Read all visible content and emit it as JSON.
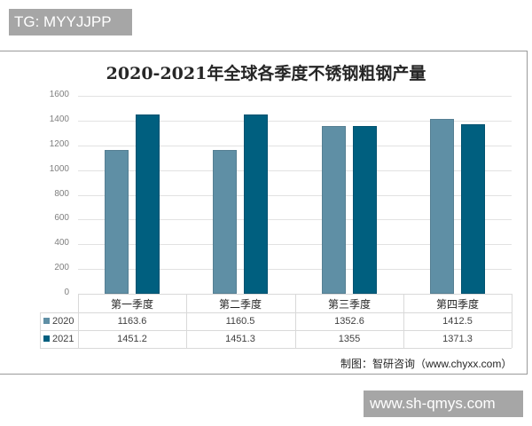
{
  "watermarks": {
    "top": "TG: MYYJJPP",
    "bottom": "www.sh-qmys.com"
  },
  "colors": {
    "series_2020": "#5f8fa5",
    "series_2021": "#005f7f",
    "grid": "#e2e2e2"
  },
  "source": "制图：智研咨询（www.chyxx.com）",
  "chart_data": {
    "type": "bar",
    "title": "2020-2021年全球各季度不锈钢粗钢产量",
    "xlabel": "",
    "ylabel": "",
    "ylim": [
      0,
      1600
    ],
    "yticks": [
      "0",
      "200",
      "400",
      "600",
      "800",
      "1000",
      "1200",
      "1400",
      "1600"
    ],
    "grid": true,
    "legend_position": "data-table",
    "categories": [
      "第一季度",
      "第二季度",
      "第三季度",
      "第四季度"
    ],
    "series": [
      {
        "name": "2020",
        "values": [
          1163.6,
          1160.5,
          1352.6,
          1412.5
        ],
        "labels": [
          "1163.6",
          "1160.5",
          "1352.6",
          "1412.5"
        ]
      },
      {
        "name": "2021",
        "values": [
          1451.2,
          1451.3,
          1355,
          1371.3
        ],
        "labels": [
          "1451.2",
          "1451.3",
          "1355",
          "1371.3"
        ]
      }
    ]
  }
}
